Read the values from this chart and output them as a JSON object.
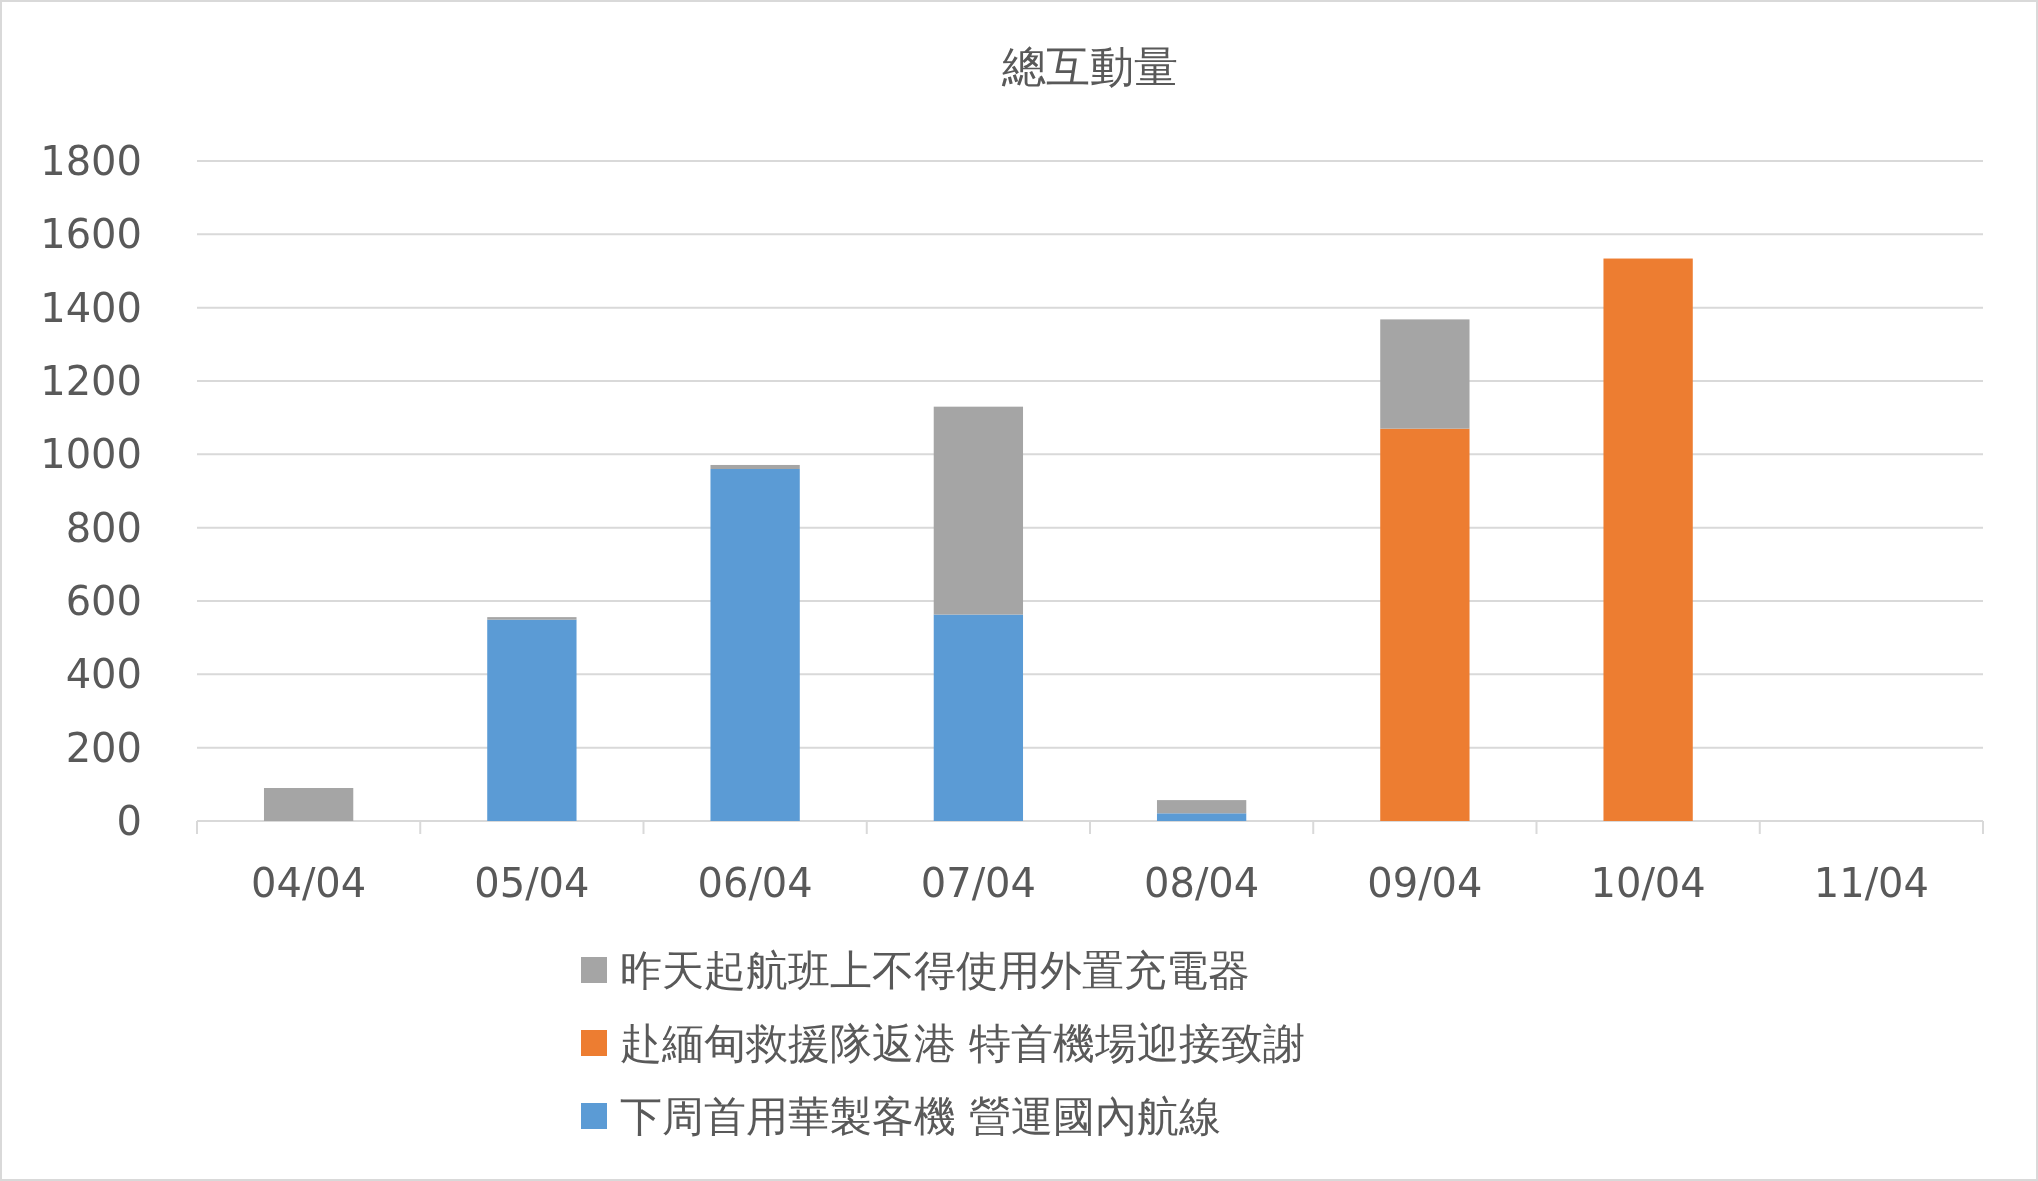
{
  "chart_data": {
    "type": "bar",
    "title": "總互動量",
    "stacked": true,
    "categories": [
      "04/04",
      "05/04",
      "06/04",
      "07/04",
      "08/04",
      "09/04",
      "10/04",
      "11/04"
    ],
    "series": [
      {
        "name": "下周首用華製客機 營運國內航線",
        "color": "#5b9bd5",
        "values": [
          null,
          549,
          960,
          563,
          21,
          null,
          null,
          null
        ]
      },
      {
        "name": "赴緬甸救援隊返港 特首機場迎接致謝",
        "color": "#ed7d31",
        "values": [
          null,
          null,
          null,
          null,
          null,
          1070,
          1534,
          null
        ]
      },
      {
        "name": "昨天起航班上不得使用外置充電器",
        "color": "#a5a5a5",
        "values": [
          90,
          7,
          11,
          567,
          36,
          298,
          null,
          null
        ]
      }
    ],
    "ylim": [
      0,
      1800
    ],
    "yticks": [
      0,
      200,
      400,
      600,
      800,
      1000,
      1200,
      1400,
      1600,
      1800
    ],
    "grid": "y",
    "legend": "bottom"
  }
}
